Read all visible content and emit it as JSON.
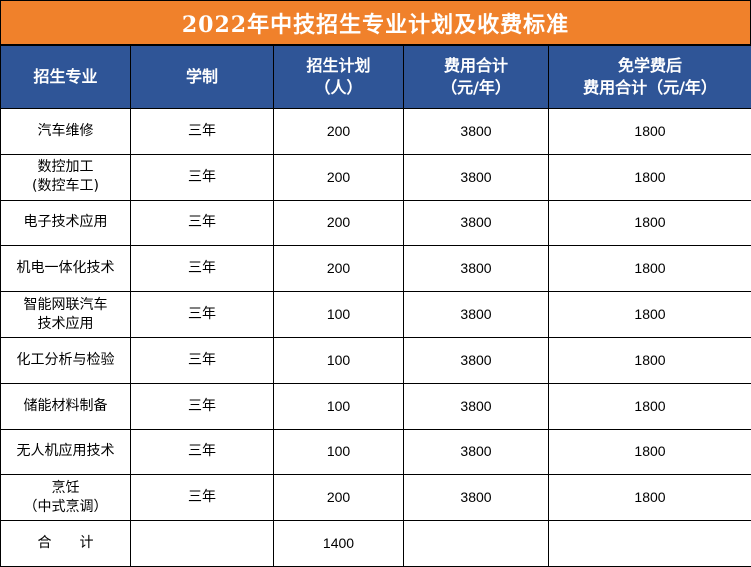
{
  "title": "2022年中技招生专业计划及收费标准",
  "headers": {
    "major": "招生专业",
    "duration": "学制",
    "plan": "招生计划\n（人）",
    "fee": "费用合计\n（元/年）",
    "fee_after": "免学费后\n费用合计（元/年）"
  },
  "rows": [
    {
      "major": "汽车维修",
      "duration": "三年",
      "plan": "200",
      "fee": "3800",
      "fee_after": "1800"
    },
    {
      "major": "数控加工\n(数控车工)",
      "duration": "三年",
      "plan": "200",
      "fee": "3800",
      "fee_after": "1800"
    },
    {
      "major": "电子技术应用",
      "duration": "三年",
      "plan": "200",
      "fee": "3800",
      "fee_after": "1800"
    },
    {
      "major": "机电一体化技术",
      "duration": "三年",
      "plan": "200",
      "fee": "3800",
      "fee_after": "1800"
    },
    {
      "major": "智能网联汽车\n技术应用",
      "duration": "三年",
      "plan": "100",
      "fee": "3800",
      "fee_after": "1800"
    },
    {
      "major": "化工分析与检验",
      "duration": "三年",
      "plan": "100",
      "fee": "3800",
      "fee_after": "1800"
    },
    {
      "major": "储能材料制备",
      "duration": "三年",
      "plan": "100",
      "fee": "3800",
      "fee_after": "1800"
    },
    {
      "major": "无人机应用技术",
      "duration": "三年",
      "plan": "100",
      "fee": "3800",
      "fee_after": "1800"
    },
    {
      "major": "烹饪\n（中式烹调）",
      "duration": "三年",
      "plan": "200",
      "fee": "3800",
      "fee_after": "1800"
    }
  ],
  "total": {
    "label": "合　　计",
    "plan": "1400"
  },
  "colors": {
    "title_bg": "#f0812b",
    "header_bg": "#2f5597",
    "title_text": "#ffffff"
  }
}
